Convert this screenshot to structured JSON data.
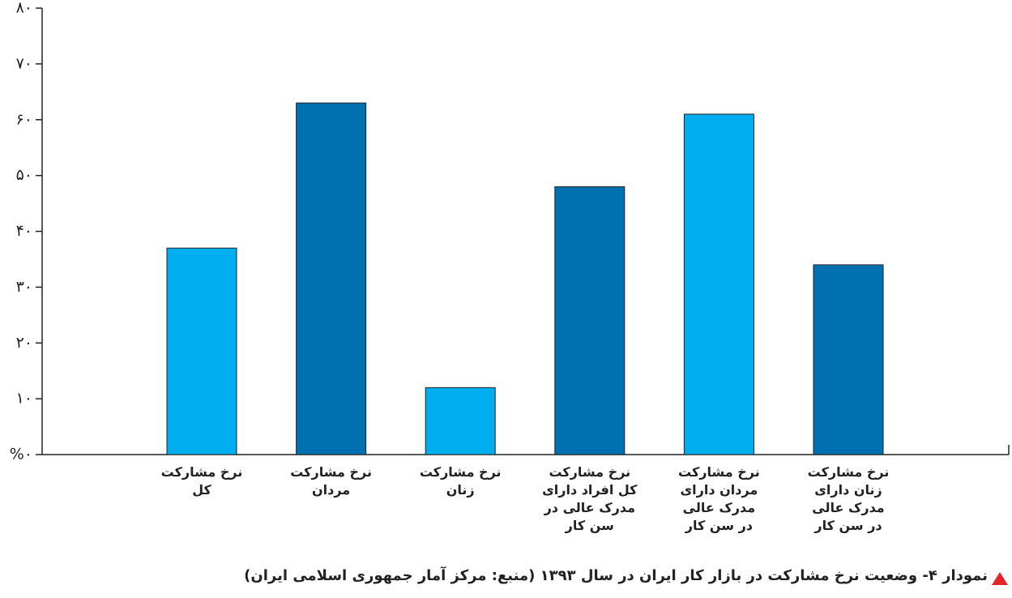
{
  "chart_data": {
    "type": "bar",
    "title": "نمودار ۴- وضعیت نرخ مشارکت در بازار کار ایران در سال ۱۳۹۳ (منبع: مرکز آمار جمهوری اسلامی ایران)",
    "categories": [
      "نرخ مشارکت\nکل",
      "نرخ مشارکت\nمردان",
      "نرخ مشارکت\nزنان",
      "نرخ مشارکت\nکل افراد دارای\nمدرک عالی در\nسن کار",
      "نرخ مشارکت\nمردان دارای\nمدرک عالی\nدر سن کار",
      "نرخ مشارکت\nزنان دارای\nمدرک عالی\nدر سن کار"
    ],
    "values": [
      37,
      63,
      12,
      48,
      61,
      34
    ],
    "colors": [
      "#00aeef",
      "#0070b0",
      "#00aeef",
      "#0070b0",
      "#00aeef",
      "#0070b0"
    ],
    "ylim": [
      0,
      80
    ],
    "yticks": [
      {
        "value": 0,
        "label": "%۰"
      },
      {
        "value": 10,
        "label": "۱۰"
      },
      {
        "value": 20,
        "label": "۲۰"
      },
      {
        "value": 30,
        "label": "۳۰"
      },
      {
        "value": 40,
        "label": "۴۰"
      },
      {
        "value": 50,
        "label": "۵۰"
      },
      {
        "value": 60,
        "label": "۶۰"
      },
      {
        "value": 70,
        "label": "۷۰"
      },
      {
        "value": 80,
        "label": "۸۰"
      }
    ],
    "grid": false
  }
}
